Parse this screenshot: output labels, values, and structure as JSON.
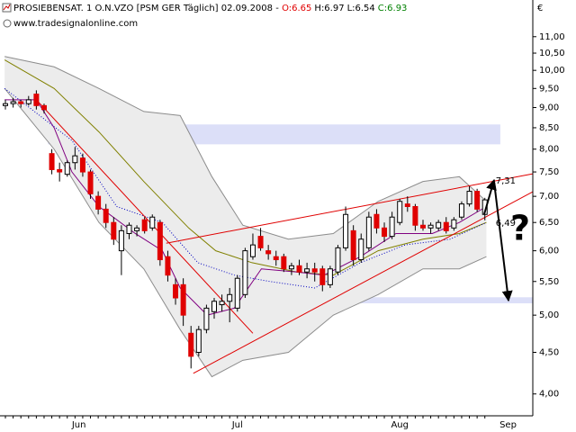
{
  "chart_data": {
    "type": "candlestick",
    "title": "PROSIEBENSAT. 1 O.N.VZO [PSM GER  Täglich] 02.09.2008 -",
    "legend_values": [
      {
        "text": "O:6.65",
        "color": "#e00000"
      },
      {
        "text": "H:6.97",
        "color": "#000000"
      },
      {
        "text": "L:6.54",
        "color": "#000000"
      },
      {
        "text": "C:6.93",
        "color": "#008000"
      }
    ],
    "subtitle": "www.tradesignalonline.com",
    "y_unit": "€",
    "log_scale": true,
    "up_color": "#ffffff",
    "down_color": "#e00000",
    "x": [
      0,
      1,
      2,
      3,
      4,
      5,
      6,
      7,
      8,
      9,
      10,
      11,
      12,
      13,
      14,
      15,
      16,
      17,
      18,
      19,
      20,
      21,
      22,
      23,
      24,
      25,
      26,
      27,
      28,
      29,
      30,
      31,
      32,
      33,
      34,
      35,
      36,
      37,
      38,
      39,
      40,
      41,
      42,
      43,
      44,
      45,
      46,
      47,
      48,
      49,
      50,
      51,
      52,
      53,
      54,
      55,
      56,
      57,
      58,
      59,
      60,
      61,
      62
    ],
    "open": [
      9.05,
      9.1,
      9.15,
      9.1,
      9.35,
      9.05,
      7.9,
      7.55,
      7.45,
      7.7,
      7.8,
      7.5,
      7.0,
      6.75,
      6.5,
      6.0,
      6.3,
      6.35,
      6.55,
      6.4,
      6.5,
      5.9,
      5.45,
      5.45,
      4.75,
      4.5,
      4.8,
      5.05,
      5.15,
      5.2,
      5.1,
      5.3,
      5.9,
      6.25,
      6.0,
      5.9,
      5.9,
      5.7,
      5.75,
      5.65,
      5.7,
      5.7,
      5.45,
      5.65,
      6.05,
      6.35,
      5.85,
      6.05,
      6.65,
      6.4,
      6.25,
      6.5,
      6.85,
      6.8,
      6.45,
      6.4,
      6.4,
      6.5,
      6.4,
      6.6,
      6.85,
      7.1,
      6.65
    ],
    "high": [
      9.2,
      9.25,
      9.2,
      9.3,
      9.45,
      9.1,
      8.0,
      7.7,
      7.75,
      8.05,
      7.9,
      7.55,
      7.1,
      6.85,
      6.6,
      6.45,
      6.5,
      6.45,
      6.6,
      6.65,
      6.55,
      6.0,
      5.55,
      5.55,
      4.85,
      4.85,
      5.15,
      5.25,
      5.3,
      5.4,
      5.6,
      6.05,
      6.3,
      6.4,
      6.1,
      6.0,
      5.95,
      5.8,
      5.85,
      5.8,
      5.8,
      5.75,
      5.75,
      6.1,
      6.8,
      6.45,
      6.3,
      6.7,
      6.75,
      6.5,
      6.7,
      6.95,
      7.0,
      6.85,
      6.55,
      6.5,
      6.55,
      6.6,
      6.6,
      6.9,
      7.2,
      7.15,
      6.97
    ],
    "low": [
      8.95,
      9.0,
      9.0,
      9.05,
      8.95,
      8.85,
      7.45,
      7.3,
      7.4,
      7.55,
      7.4,
      6.95,
      6.65,
      6.4,
      6.1,
      5.6,
      6.2,
      6.25,
      6.3,
      6.35,
      5.75,
      5.5,
      5.15,
      4.85,
      4.3,
      4.45,
      4.75,
      4.95,
      5.05,
      4.9,
      5.05,
      5.25,
      5.85,
      6.0,
      5.85,
      5.75,
      5.65,
      5.6,
      5.6,
      5.55,
      5.5,
      5.35,
      5.4,
      5.6,
      6.0,
      5.75,
      5.8,
      6.0,
      6.3,
      6.15,
      6.2,
      6.45,
      6.7,
      6.35,
      6.35,
      6.3,
      6.35,
      6.3,
      6.35,
      6.55,
      6.8,
      6.7,
      6.54
    ],
    "close": [
      9.1,
      9.15,
      9.1,
      9.2,
      9.05,
      8.95,
      7.55,
      7.5,
      7.7,
      7.85,
      7.5,
      7.05,
      6.75,
      6.5,
      6.2,
      6.35,
      6.45,
      6.4,
      6.35,
      6.6,
      5.85,
      5.6,
      5.25,
      5.0,
      4.45,
      4.8,
      5.1,
      5.2,
      5.2,
      5.3,
      5.55,
      6.0,
      6.1,
      6.05,
      5.95,
      5.85,
      5.7,
      5.75,
      5.65,
      5.7,
      5.65,
      5.45,
      5.7,
      6.05,
      6.65,
      5.85,
      6.2,
      6.6,
      6.4,
      6.25,
      6.6,
      6.9,
      6.8,
      6.45,
      6.4,
      6.45,
      6.5,
      6.35,
      6.55,
      6.85,
      7.1,
      6.75,
      6.93
    ],
    "xlim": [
      -0.7,
      68.2
    ],
    "xticks": [
      {
        "value": 9.5,
        "label": "Jun"
      },
      {
        "value": 30,
        "label": "Jul"
      },
      {
        "value": 51,
        "label": "Aug"
      },
      {
        "value": 65,
        "label": "Sep"
      }
    ],
    "ylim": [
      3.76,
      12.05
    ],
    "yticks": [
      {
        "value": 4,
        "label": "4,00"
      },
      {
        "value": 4.5,
        "label": "4,50"
      },
      {
        "value": 5,
        "label": "5,00"
      },
      {
        "value": 5.5,
        "label": "5,50"
      },
      {
        "value": 6,
        "label": "6,00"
      },
      {
        "value": 6.5,
        "label": "6,50"
      },
      {
        "value": 7,
        "label": "7,00"
      },
      {
        "value": 7.5,
        "label": "7,50"
      },
      {
        "value": 8,
        "label": "8,00"
      },
      {
        "value": 8.5,
        "label": "8,50"
      },
      {
        "value": 9,
        "label": "9,00"
      },
      {
        "value": 9.5,
        "label": "9,50"
      },
      {
        "value": 10,
        "label": "10,00"
      },
      {
        "value": 10.5,
        "label": "10,50"
      },
      {
        "value": 11,
        "label": "11,00"
      }
    ],
    "zones": [
      {
        "color": "#dcdff8",
        "x": [
          5.5,
          64
        ],
        "values": [
          8.11,
          8.58
        ]
      },
      {
        "color": "#dcdff8",
        "x": [
          41,
          68.2
        ],
        "values": [
          5.17,
          5.26
        ]
      }
    ],
    "band": {
      "color": "#ececec",
      "stroke": "#8c8c8c",
      "x": [
        -0.1,
        6.3,
        12.1,
        17.9,
        22.6,
        26.7,
        30.7,
        36.6,
        42.4,
        48.2,
        54,
        58.7,
        62.2
      ],
      "upper": [
        10.4,
        10.1,
        9.5,
        8.9,
        8.8,
        7.4,
        6.45,
        6.2,
        6.3,
        6.9,
        7.3,
        7.4,
        6.9
      ],
      "lower": [
        9.5,
        8.0,
        6.5,
        5.7,
        4.8,
        4.2,
        4.4,
        4.5,
        5.0,
        5.3,
        5.7,
        5.7,
        5.9
      ]
    },
    "lines": [
      {
        "color": "#808000",
        "style": "solid",
        "x": [
          -0.1,
          6.3,
          12.1,
          17.9,
          23.7,
          27.2,
          31.9,
          37.7,
          42.4,
          48.2,
          54,
          58.7,
          62.2
        ],
        "values": [
          10.3,
          9.5,
          8.4,
          7.3,
          6.4,
          6.0,
          5.8,
          5.65,
          5.6,
          6.0,
          6.2,
          6.3,
          6.5
        ]
      },
      {
        "color": "#800080",
        "style": "solid",
        "x": [
          -0.1,
          4,
          6.3,
          8.6,
          12.1,
          16.8,
          20.3,
          22.6,
          26.1,
          29.6,
          33.1,
          37.7,
          41.2,
          45.9,
          50.5,
          55.2,
          58.7,
          62.2
        ],
        "values": [
          9.2,
          9.2,
          8.5,
          7.5,
          6.8,
          6.3,
          6.0,
          5.4,
          5.0,
          5.1,
          5.7,
          5.65,
          5.6,
          5.9,
          6.3,
          6.3,
          6.5,
          6.8
        ]
      },
      {
        "color": "#0000c0",
        "style": "dotted",
        "x": [
          -0.1,
          8.6,
          14.4,
          20.3,
          24.9,
          29.6,
          34.2,
          40,
          45.9,
          51.7,
          57.5,
          62.2
        ],
        "values": [
          9.5,
          8.2,
          6.8,
          6.5,
          5.8,
          5.6,
          5.5,
          5.4,
          5.8,
          6.1,
          6.2,
          6.5
        ]
      },
      {
        "color": "#e00000",
        "style": "solid",
        "x": [
          4,
          32
        ],
        "values": [
          9.2,
          4.75
        ]
      },
      {
        "color": "#e00000",
        "style": "solid",
        "x": [
          20.8,
          68.2
        ],
        "values": [
          6.13,
          7.46
        ]
      },
      {
        "color": "#e00000",
        "style": "solid",
        "x": [
          24.3,
          68.2
        ],
        "values": [
          4.24,
          7.09
        ]
      }
    ],
    "annotations": [
      {
        "x": 63.4,
        "value": 7.31,
        "label": "7,31",
        "color": "#e00000"
      },
      {
        "x": 63.4,
        "value": 6.49,
        "label": "6,49",
        "color": "#e00000"
      }
    ],
    "question_mark": "?"
  }
}
